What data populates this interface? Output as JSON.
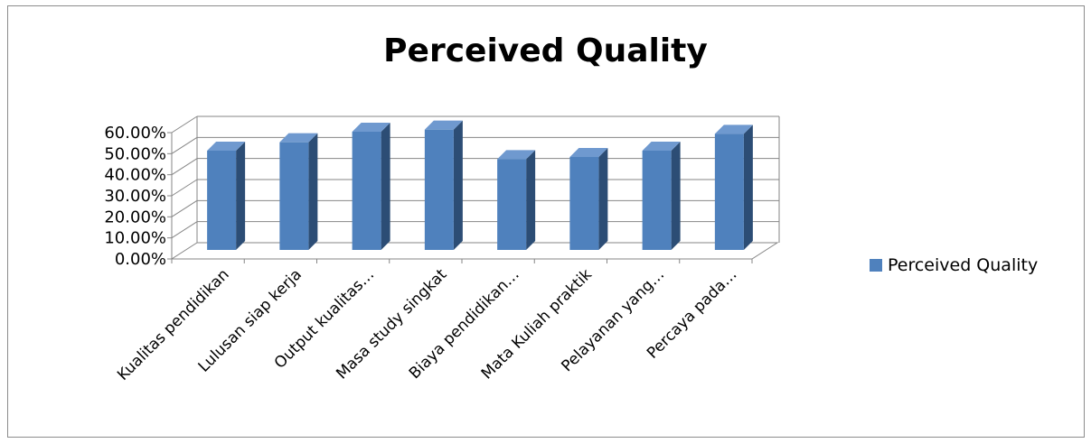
{
  "chart_data": {
    "type": "bar",
    "title": "Perceived Quality",
    "categories": [
      "Kualitas pendidikan",
      "Lulusan siap kerja",
      "Output kualitas…",
      "Masa study singkat",
      "Biaya pendidikan…",
      "Mata Kuliah praktik",
      "Pelayanan yang…",
      "Percaya pada…"
    ],
    "series": [
      {
        "name": "Perceived Quality",
        "values": [
          0.48,
          0.52,
          0.57,
          0.58,
          0.44,
          0.45,
          0.48,
          0.56
        ]
      }
    ],
    "yticks": [
      "0.00%",
      "10.00%",
      "20.00%",
      "30.00%",
      "40.00%",
      "50.00%",
      "60.00%"
    ],
    "ylim": [
      0,
      0.6
    ],
    "grid": true,
    "legend_position": "right",
    "colors": {
      "front": "#4f81bd",
      "side": "#2c4d75",
      "top": "#6f99cf"
    }
  }
}
